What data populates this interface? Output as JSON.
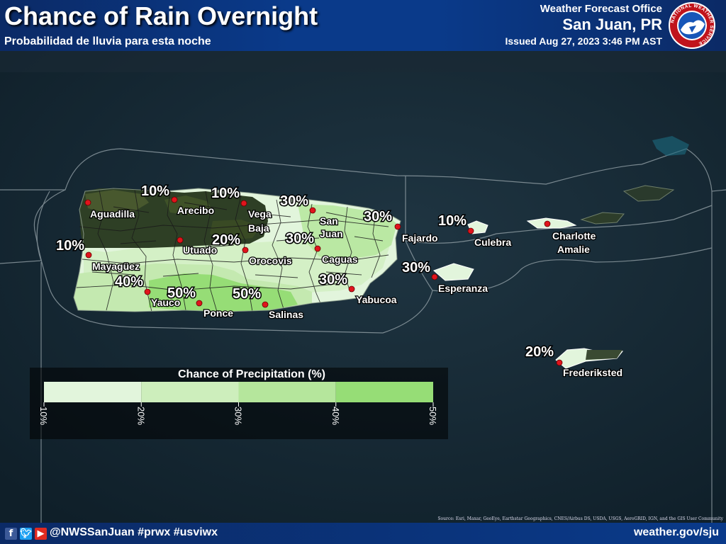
{
  "header": {
    "title": "Chance of Rain Overnight",
    "subtitle": "Probabilidad de lluvia para esta noche",
    "office": "Weather Forecast Office",
    "city": "San Juan, PR",
    "issued": "Issued Aug 27, 2023 3:46 PM AST"
  },
  "logo": {
    "ring_text": "NATIONAL WEATHER SERVICE",
    "icon": "nws-logo"
  },
  "labels": {
    "percents": [
      "10%",
      "10%",
      "30%",
      "30%",
      "20%",
      "30%",
      "10%",
      "10%",
      "30%",
      "40%",
      "50%",
      "50%",
      "30%",
      "20%"
    ],
    "cities": [
      "Aguadilla",
      "Arecibo",
      "Vega",
      "Baja",
      "San",
      "Juan",
      "Fajardo",
      "Culebra",
      "Charlotte",
      "Amalie",
      "Utuado",
      "Orocovis",
      "Caguas",
      "Mayagüez",
      "Esperanza",
      "Yauco",
      "Ponce",
      "Salinas",
      "Yabucoa",
      "Frederiksted"
    ]
  },
  "legend": {
    "title": "Chance of Precipitation (%)",
    "ticks": [
      "10%",
      "20%",
      "30%",
      "40%",
      "50%"
    ],
    "colors": [
      "#e2f5dc",
      "#cdeebc",
      "#b5e69c",
      "#96dd76"
    ]
  },
  "footer": {
    "handle": "@NWSSanJuan #prwx #usviwx",
    "website": "weather.gov/sju",
    "icons": [
      "facebook-icon",
      "twitter-icon",
      "youtube-icon"
    ]
  },
  "source": "Source: Esri, Maxar, GeoEye, Earthstar Geographics, CNES/Airbus DS, USDA, USGS, AeroGRID, IGN, and the GIS User Community",
  "colors": {
    "header": "#0a3a8a",
    "marker": "#e0141c",
    "ocean": "#152733"
  }
}
